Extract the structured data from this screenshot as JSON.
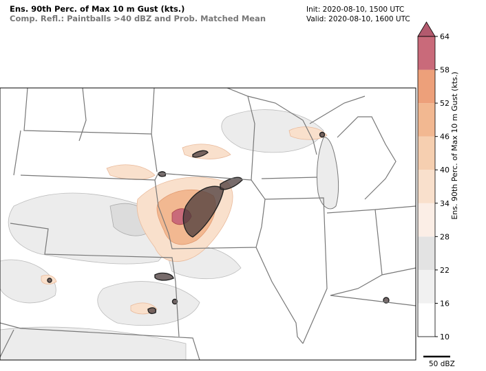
{
  "header": {
    "title": "Ens. 90th Perc. of Max 10 m Gust (kts.)",
    "subtitle": "Comp. Refl.: Paintballs >40 dBZ and Prob. Matched Mean",
    "init": "Init: 2020-08-10, 1500 UTC",
    "valid": "Valid: 2020-08-10, 1600 UTC"
  },
  "colorbar": {
    "label": "Ens. 90th Perc. of Max 10 m Gust (kts.)",
    "ticks": [
      10,
      16,
      22,
      28,
      34,
      40,
      46,
      52,
      58,
      64
    ],
    "colors": [
      "#ffffff",
      "#f1f1f1",
      "#e3e3e3",
      "#fbeee6",
      "#f9e0cc",
      "#f6cfb0",
      "#f2b891",
      "#eda07a",
      "#c96a7a"
    ],
    "extend_color": "#b35a6e"
  },
  "legend": {
    "label": "50 dBZ"
  }
}
